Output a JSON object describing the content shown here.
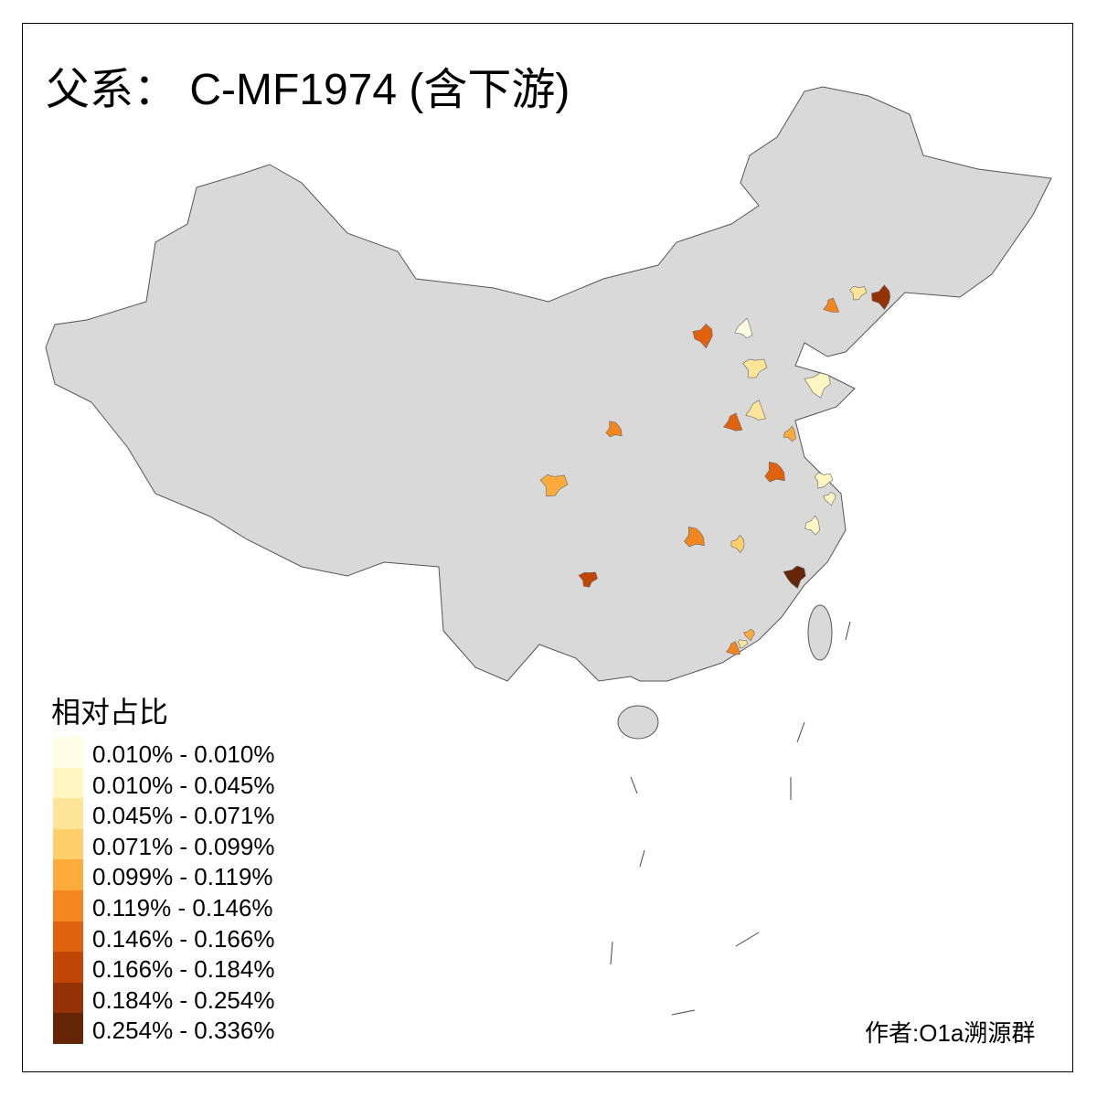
{
  "title": "父系： C-MF1974 (含下游)",
  "legend": {
    "title": "相对占比",
    "items": [
      {
        "label": "0.010% - 0.010%",
        "color": "#FFFDE4"
      },
      {
        "label": "0.010% - 0.045%",
        "color": "#FFF6C1"
      },
      {
        "label": "0.045% - 0.071%",
        "color": "#FEE499"
      },
      {
        "label": "0.071% - 0.099%",
        "color": "#FECF6A"
      },
      {
        "label": "0.099% - 0.119%",
        "color": "#FDAB3C"
      },
      {
        "label": "0.119% - 0.146%",
        "color": "#F3861F"
      },
      {
        "label": "0.146% - 0.166%",
        "color": "#E0620F"
      },
      {
        "label": "0.166% - 0.184%",
        "color": "#C14605"
      },
      {
        "label": "0.184% - 0.254%",
        "color": "#923206"
      },
      {
        "label": "0.254% - 0.336%",
        "color": "#662506"
      }
    ]
  },
  "base_fill": "#D9D9D9",
  "credit": "作者:O1a溯源群"
}
